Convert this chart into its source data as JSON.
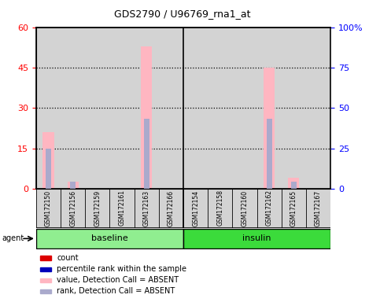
{
  "title": "GDS2790 / U96769_rna1_at",
  "samples": [
    "GSM172150",
    "GSM172156",
    "GSM172159",
    "GSM172161",
    "GSM172163",
    "GSM172166",
    "GSM172154",
    "GSM172158",
    "GSM172160",
    "GSM172162",
    "GSM172165",
    "GSM172167"
  ],
  "value_absent": [
    21,
    2.5,
    0,
    0,
    53,
    0,
    0,
    0,
    0,
    45,
    4,
    0
  ],
  "rank_absent": [
    15,
    2.5,
    0,
    0,
    26,
    0,
    0,
    0,
    0,
    26,
    2.5,
    0
  ],
  "ylim_left": [
    0,
    60
  ],
  "ylim_right": [
    0,
    100
  ],
  "yticks_left": [
    0,
    15,
    30,
    45,
    60
  ],
  "yticks_right": [
    0,
    25,
    50,
    75,
    100
  ],
  "ytick_labels_right": [
    "0",
    "25",
    "50",
    "75",
    "100%"
  ],
  "color_value_absent": "#FFB6C1",
  "color_rank_absent": "#AAAACC",
  "background_plot": "#D3D3D3",
  "group_color_baseline": "#90EE90",
  "group_color_insulin": "#3BDB3B",
  "baseline_label": "baseline",
  "insulin_label": "insulin",
  "agent_label": "agent",
  "legend_items": [
    {
      "color": "#DD0000",
      "label": "count"
    },
    {
      "color": "#0000BB",
      "label": "percentile rank within the sample"
    },
    {
      "color": "#FFB6C1",
      "label": "value, Detection Call = ABSENT"
    },
    {
      "color": "#AAAACC",
      "label": "rank, Detection Call = ABSENT"
    }
  ]
}
